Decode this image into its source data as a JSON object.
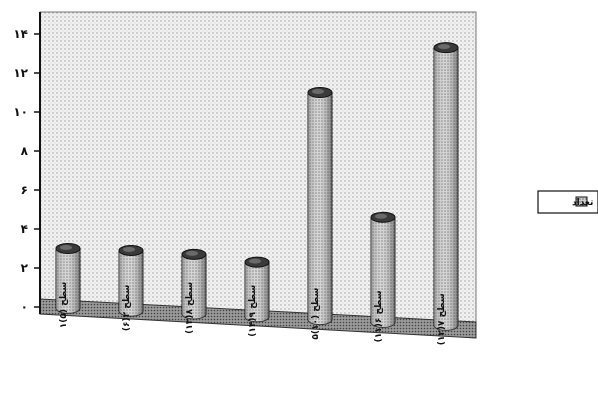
{
  "chart_data": {
    "type": "bar",
    "title": "",
    "xlabel": "",
    "ylabel": "",
    "ylim": [
      0,
      14
    ],
    "yticks": [
      "۰",
      "۲",
      "۴",
      "۶",
      "۸",
      "۱۰",
      "۱۲",
      "۱۴"
    ],
    "categories": [
      "سطح (۵)۱",
      "سطح ۲(۶)",
      "سطح ۸(۱۳)",
      "سطح ۹(۱۴)",
      "سطح (۱۰)۵",
      "سطح ۶(۱۱)",
      "سطح ۷(۱۲)"
    ],
    "series": [
      {
        "name": "تعداد",
        "values": [
          3,
          2.9,
          2.7,
          2.3,
          11,
          4.6,
          13.3
        ]
      }
    ],
    "grid": false,
    "legend_position": "right",
    "colors": {
      "bar": "#b8b8b8",
      "bar_top": "#3a3a3a",
      "floor": "#8c8c8c",
      "wall": "#e9e9e9"
    }
  }
}
